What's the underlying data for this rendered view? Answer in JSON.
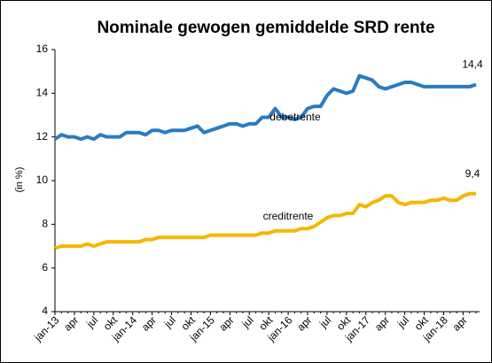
{
  "chart_data": {
    "type": "line",
    "title": "Nominale gewogen gemiddelde SRD rente",
    "y_label": "(in %)",
    "categories": [
      "jan-13",
      null,
      null,
      "apr",
      null,
      null,
      "jul",
      null,
      null,
      "okt",
      null,
      null,
      "jan-14",
      null,
      null,
      "apr",
      null,
      null,
      "jul",
      null,
      null,
      "okt",
      null,
      null,
      "jan-15",
      null,
      null,
      "apr",
      null,
      null,
      "jul",
      null,
      null,
      "okt",
      null,
      null,
      "jan-16",
      null,
      null,
      "apr",
      null,
      null,
      "jul",
      null,
      null,
      "okt",
      null,
      null,
      "jan-17",
      null,
      null,
      "apr",
      null,
      null,
      "jul",
      null,
      null,
      "okt",
      null,
      null,
      "jan-18",
      null,
      null,
      "apr",
      null,
      null
    ],
    "series": [
      {
        "name": "debetrente",
        "color": "#2a7bc4",
        "values": [
          11.9,
          12.1,
          12.0,
          12.0,
          11.9,
          12.0,
          11.9,
          12.1,
          12.0,
          12.0,
          12.0,
          12.2,
          12.2,
          12.2,
          12.1,
          12.3,
          12.3,
          12.2,
          12.3,
          12.3,
          12.3,
          12.4,
          12.5,
          12.2,
          12.3,
          12.4,
          12.5,
          12.6,
          12.6,
          12.5,
          12.6,
          12.6,
          12.9,
          12.9,
          13.3,
          12.9,
          12.9,
          12.8,
          12.9,
          13.3,
          13.4,
          13.4,
          13.9,
          14.2,
          14.1,
          14.0,
          14.1,
          14.8,
          14.7,
          14.6,
          14.3,
          14.2,
          14.3,
          14.4,
          14.5,
          14.5,
          14.4,
          14.3,
          14.3,
          14.3,
          14.3,
          14.3,
          14.3,
          14.3,
          14.3,
          14.4
        ],
        "value_labels": {
          "65": "14,4"
        }
      },
      {
        "name": "creditrente",
        "color": "#f5b700",
        "values": [
          6.9,
          7.0,
          7.0,
          7.0,
          7.0,
          7.1,
          7.0,
          7.1,
          7.2,
          7.2,
          7.2,
          7.2,
          7.2,
          7.2,
          7.3,
          7.3,
          7.4,
          7.4,
          7.4,
          7.4,
          7.4,
          7.4,
          7.4,
          7.4,
          7.5,
          7.5,
          7.5,
          7.5,
          7.5,
          7.5,
          7.5,
          7.5,
          7.6,
          7.6,
          7.7,
          7.7,
          7.7,
          7.7,
          7.8,
          7.8,
          7.9,
          8.1,
          8.3,
          8.4,
          8.4,
          8.5,
          8.5,
          8.9,
          8.8,
          9.0,
          9.1,
          9.3,
          9.3,
          9.0,
          8.9,
          9.0,
          9.0,
          9.0,
          9.1,
          9.1,
          9.2,
          9.1,
          9.1,
          9.3,
          9.4,
          9.4
        ],
        "value_labels": {
          "65": "9,4"
        }
      }
    ],
    "ylim": [
      4,
      16
    ],
    "yticks": [
      4,
      6,
      8,
      10,
      12,
      14,
      16
    ],
    "grid": false
  }
}
